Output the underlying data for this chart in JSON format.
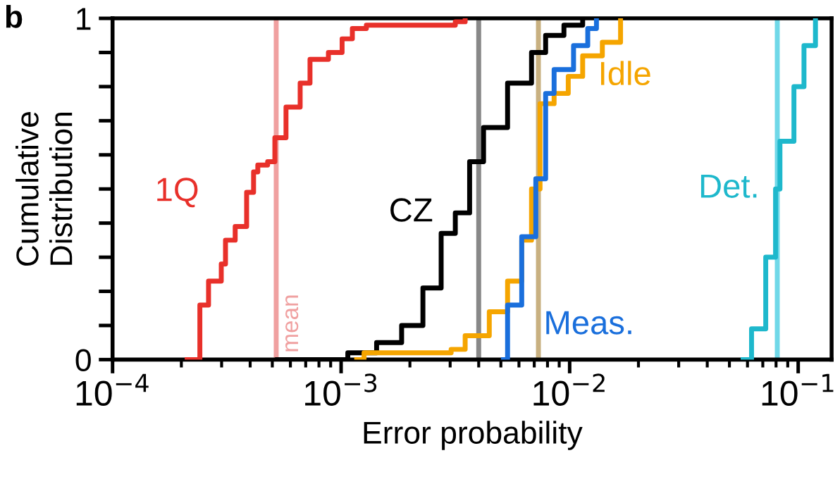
{
  "chart_data": {
    "type": "step",
    "xlabel": "Error probability",
    "ylabel": "Cumulative\nDistribution",
    "log": "x",
    "xlim": [
      0.0001,
      0.14
    ],
    "ylim": [
      0,
      1
    ],
    "xticks": [
      {
        "value": 0.0001,
        "label": "10$^{−4}$"
      },
      {
        "value": 0.001,
        "label": "10$^{−3}$"
      },
      {
        "value": 0.01,
        "label": "10$^{−2}$"
      },
      {
        "value": 0.1,
        "label": "10$^{−1}$"
      }
    ],
    "yticks": [
      0,
      {
        "value": 0.1,
        "label": null
      },
      {
        "value": 0.2,
        "label": null
      },
      {
        "value": 0.3,
        "label": null
      },
      {
        "value": 0.4,
        "label": null
      },
      {
        "value": 0.5,
        "label": null
      },
      {
        "value": 0.6,
        "label": null
      },
      {
        "value": 0.7,
        "label": null
      },
      {
        "value": 0.8,
        "label": null
      },
      {
        "value": 0.9,
        "label": null
      },
      1
    ],
    "grid": false,
    "legend": false,
    "marker": "none",
    "line_style": "solid",
    "series": [
      {
        "name": "1Q",
        "color": "#e8302a",
        "x": [
          0.000212,
          0.000241,
          0.000263,
          0.000299,
          0.000312,
          0.000344,
          0.000386,
          0.000414,
          0.000432,
          0.000477,
          0.000513,
          0.000574,
          0.000662,
          0.000731,
          0.00088,
          0.00101,
          0.00112,
          0.00129,
          0.00206,
          0.00316,
          0.00349
        ],
        "values": [
          0,
          0.16,
          0.23,
          0.28,
          0.35,
          0.39,
          0.49,
          0.55,
          0.57,
          0.58,
          0.65,
          0.74,
          0.81,
          0.88,
          0.9,
          0.94,
          0.97,
          0.98,
          0.98,
          0.99,
          1
        ]
      },
      {
        "name": "CZ",
        "color": "#000000",
        "x": [
          0.000527,
          0.00107,
          0.00143,
          0.00184,
          0.00228,
          0.00274,
          0.00316,
          0.00365,
          0.0042,
          0.00535,
          0.00681,
          0.00785,
          0.00944,
          0.0114
        ],
        "values": [
          0,
          0.02,
          0.05,
          0.1,
          0.21,
          0.37,
          0.43,
          0.58,
          0.68,
          0.81,
          0.9,
          0.95,
          0.98,
          1
        ]
      },
      {
        "name": "Idle",
        "color": "#f5a500",
        "x": [
          0.00117,
          0.00126,
          0.00303,
          0.00349,
          0.00445,
          0.00535,
          0.00617,
          0.00681,
          0.00742,
          0.00855,
          0.00986,
          0.0114,
          0.0139,
          0.0167
        ],
        "values": [
          0,
          0.02,
          0.03,
          0.07,
          0.14,
          0.23,
          0.35,
          0.5,
          0.75,
          0.78,
          0.83,
          0.89,
          0.93,
          1
        ]
      },
      {
        "name": "Meas.",
        "color": "#1a6fdc",
        "x": [
          0.00513,
          0.00535,
          0.00617,
          0.00711,
          0.00785,
          0.00855,
          0.0104,
          0.012,
          0.0131
        ],
        "values": [
          0,
          0.16,
          0.36,
          0.53,
          0.78,
          0.85,
          0.92,
          0.97,
          1
        ]
      },
      {
        "name": "Det.",
        "color": "#1eb8cc",
        "x": [
          0.0574,
          0.0625,
          0.0721,
          0.0796,
          0.0832,
          0.0958,
          0.106,
          0.119
        ],
        "values": [
          0,
          0.09,
          0.3,
          0.5,
          0.64,
          0.8,
          0.92,
          1
        ]
      }
    ],
    "ref_lines": [
      {
        "axis": "x",
        "value": 0.00052,
        "label": "mean",
        "color": "#f0a0a0"
      },
      {
        "axis": "x",
        "value": 0.004,
        "color": "#888888"
      },
      {
        "axis": "x",
        "value": 0.0073,
        "color": "#c8b080"
      },
      {
        "axis": "x",
        "value": 0.081,
        "color": "#70d8e8"
      }
    ],
    "annotations": [
      "b"
    ]
  }
}
